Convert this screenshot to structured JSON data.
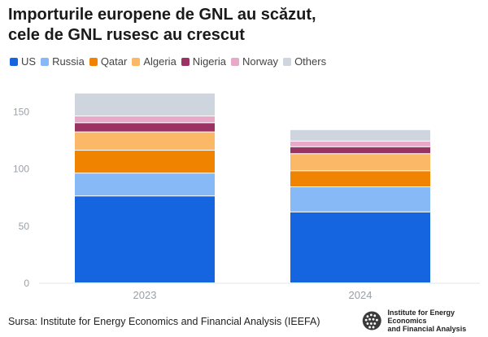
{
  "title_lines": [
    "Importurile europene de GNL au scăzut,",
    "cele de GNL rusesc au crescut"
  ],
  "source": "Sursa: Institute for Energy Economics and Financial Analysis (IEEFA)",
  "brand": {
    "line1": "Institute for Energy Economics",
    "line2": "and Financial Analysis",
    "logo_icon": "globe-icon"
  },
  "colors": {
    "US": "#1565e0",
    "Russia": "#86b9f5",
    "Qatar": "#f08400",
    "Algeria": "#fbb867",
    "Nigeria": "#9a3363",
    "Norway": "#e8a9c9",
    "Others": "#cfd5de"
  },
  "chart_data": {
    "type": "bar",
    "stacked": true,
    "categories": [
      "2023",
      "2024"
    ],
    "yticks": [
      0,
      50,
      100,
      150
    ],
    "ylim": [
      0,
      168
    ],
    "legend_position": "top-left",
    "grid": false,
    "series": [
      {
        "name": "US",
        "values": [
          76,
          62
        ]
      },
      {
        "name": "Russia",
        "values": [
          20,
          22
        ]
      },
      {
        "name": "Qatar",
        "values": [
          20,
          14
        ]
      },
      {
        "name": "Algeria",
        "values": [
          16,
          15
        ]
      },
      {
        "name": "Nigeria",
        "values": [
          8,
          6
        ]
      },
      {
        "name": "Norway",
        "values": [
          6,
          5
        ]
      },
      {
        "name": "Others",
        "values": [
          20,
          10
        ]
      }
    ]
  }
}
